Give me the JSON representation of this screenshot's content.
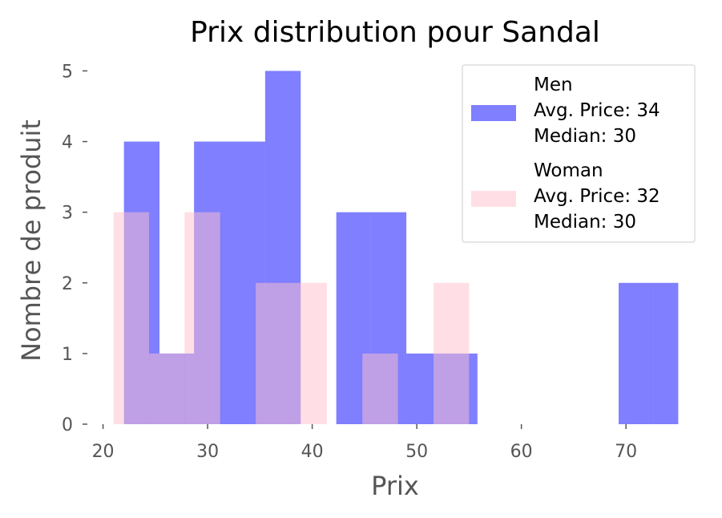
{
  "chart_data": {
    "type": "bar",
    "subtype": "overlapping histogram",
    "title": "Prix distribution pour Sandal",
    "xlabel": "Prix",
    "ylabel": "Nombre de produit",
    "xlim": [
      18.5,
      76.5
    ],
    "ylim": [
      0,
      5.3
    ],
    "xticks": [
      20,
      30,
      40,
      50,
      60,
      70
    ],
    "yticks": [
      0,
      1,
      2,
      3,
      4,
      5
    ],
    "grid": false,
    "legend_position": "top-right",
    "series": [
      {
        "name": "Men",
        "legend_lines": [
          "Men",
          "Avg. Price: 34",
          "Median: 30"
        ],
        "color": "#0000ff",
        "opacity": 0.5,
        "bins": [
          {
            "x0": 22.0,
            "x1": 25.4,
            "count": 4
          },
          {
            "x0": 25.4,
            "x1": 28.7,
            "count": 1
          },
          {
            "x0": 28.7,
            "x1": 32.1,
            "count": 4
          },
          {
            "x0": 32.1,
            "x1": 35.5,
            "count": 4
          },
          {
            "x0": 35.5,
            "x1": 38.9,
            "count": 5
          },
          {
            "x0": 38.9,
            "x1": 42.3,
            "count": 0
          },
          {
            "x0": 42.3,
            "x1": 45.6,
            "count": 3
          },
          {
            "x0": 45.6,
            "x1": 49.0,
            "count": 3
          },
          {
            "x0": 49.0,
            "x1": 52.4,
            "count": 1
          },
          {
            "x0": 52.4,
            "x1": 55.8,
            "count": 1
          },
          {
            "x0": 55.8,
            "x1": 59.1,
            "count": 0
          },
          {
            "x0": 59.1,
            "x1": 62.5,
            "count": 0
          },
          {
            "x0": 62.5,
            "x1": 65.9,
            "count": 0
          },
          {
            "x0": 65.9,
            "x1": 69.3,
            "count": 0
          },
          {
            "x0": 69.3,
            "x1": 72.6,
            "count": 2
          },
          {
            "x0": 72.6,
            "x1": 75.0,
            "count": 2
          }
        ]
      },
      {
        "name": "Woman",
        "legend_lines": [
          "Woman",
          "Avg. Price: 32",
          "Median: 30"
        ],
        "color": "#ffc0cb",
        "opacity": 0.5,
        "bins": [
          {
            "x0": 21.0,
            "x1": 24.4,
            "count": 3
          },
          {
            "x0": 24.4,
            "x1": 27.8,
            "count": 1
          },
          {
            "x0": 27.8,
            "x1": 31.2,
            "count": 3
          },
          {
            "x0": 31.2,
            "x1": 34.6,
            "count": 0
          },
          {
            "x0": 34.6,
            "x1": 38.0,
            "count": 2
          },
          {
            "x0": 38.0,
            "x1": 41.4,
            "count": 2
          },
          {
            "x0": 41.4,
            "x1": 44.8,
            "count": 0
          },
          {
            "x0": 44.8,
            "x1": 48.2,
            "count": 1
          },
          {
            "x0": 48.2,
            "x1": 51.6,
            "count": 0
          },
          {
            "x0": 51.6,
            "x1": 55.0,
            "count": 2
          }
        ]
      }
    ]
  }
}
